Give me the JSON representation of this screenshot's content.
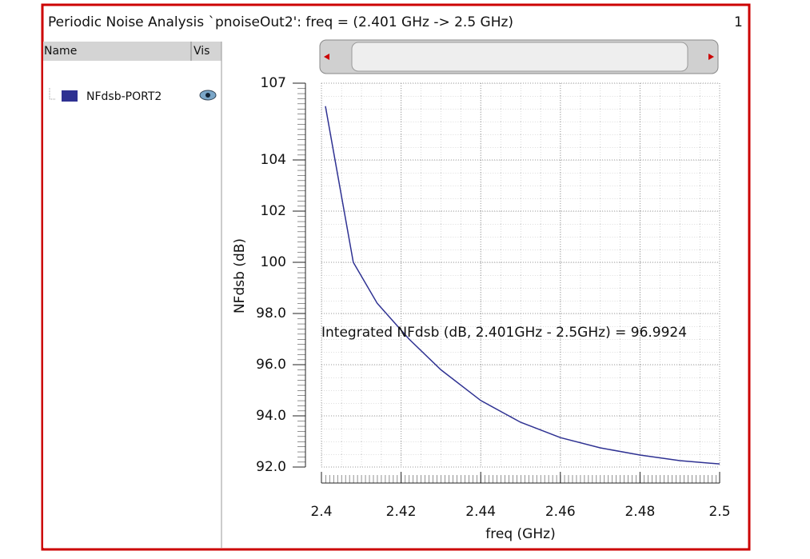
{
  "window": {
    "title": "Periodic Noise Analysis `pnoiseOut2': freq = (2.401 GHz -> 2.5 GHz)",
    "badge": "1"
  },
  "panel": {
    "columns": [
      "Name",
      "Vis"
    ]
  },
  "chart_data": {
    "type": "line",
    "x_label": "freq (GHz)",
    "y_label": "NFdsb (dB)",
    "annotation": "Integrated NFdsb (dB, 2.401GHz - 2.5GHz) = 96.9924",
    "x": [
      2.401,
      2.408,
      2.414,
      2.422,
      2.43,
      2.44,
      2.45,
      2.46,
      2.47,
      2.48,
      2.49,
      2.5
    ],
    "series": [
      {
        "name": "NFdsb-PORT2",
        "color": "#2e3192",
        "values": [
          106.1,
          100.0,
          98.4,
          97.0,
          95.8,
          94.6,
          93.75,
          93.15,
          92.75,
          92.47,
          92.25,
          92.12
        ]
      }
    ],
    "xlim": [
      2.4,
      2.5
    ],
    "xticks": [
      2.4,
      2.42,
      2.44,
      2.46,
      2.48,
      2.5
    ],
    "ylim": [
      92,
      107
    ],
    "yticks": [
      {
        "value": 92,
        "label": "92.0"
      },
      {
        "value": 94,
        "label": "94.0"
      },
      {
        "value": 96,
        "label": "96.0"
      },
      {
        "value": 98,
        "label": "98.0"
      },
      100,
      102,
      104,
      107
    ],
    "grid": true
  }
}
